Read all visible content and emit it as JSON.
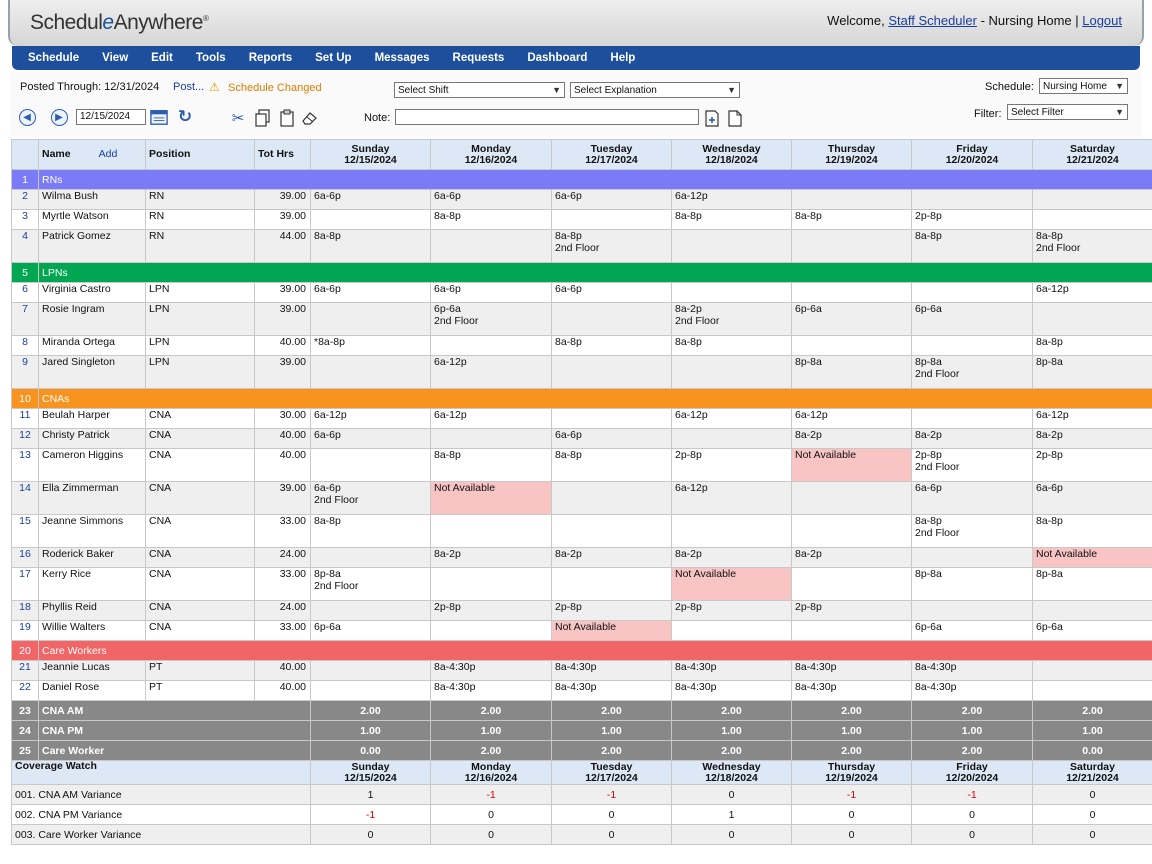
{
  "header": {
    "logo_text_a": "Schedul",
    "logo_text_e": "e",
    "logo_text_b": "Anywhere",
    "logo_reg": "®",
    "welcome_prefix": "Welcome, ",
    "user_link": "Staff Scheduler",
    "org_text": " - Nursing Home | ",
    "logout": "Logout"
  },
  "menu": [
    "Schedule",
    "View",
    "Edit",
    "Tools",
    "Reports",
    "Set Up",
    "Messages",
    "Requests",
    "Dashboard",
    "Help"
  ],
  "toolbar": {
    "posted_label": "Posted Through: 12/31/2024",
    "post_link": "Post...",
    "changed_text": "Schedule Changed",
    "select_shift": "Select Shift",
    "select_explanation": "Select Explanation",
    "schedule_label": "Schedule:",
    "schedule_value": "Nursing Home",
    "filter_label": "Filter:",
    "filter_value": "Select Filter",
    "date_value": "12/15/2024",
    "note_label": "Note:",
    "note_value": ""
  },
  "columns": {
    "name": "Name",
    "add": "Add",
    "position": "Position",
    "tot_hrs": "Tot Hrs",
    "days": [
      {
        "day": "Sunday",
        "date": "12/15/2024"
      },
      {
        "day": "Monday",
        "date": "12/16/2024"
      },
      {
        "day": "Tuesday",
        "date": "12/17/2024"
      },
      {
        "day": "Wednesday",
        "date": "12/18/2024"
      },
      {
        "day": "Thursday",
        "date": "12/19/2024"
      },
      {
        "day": "Friday",
        "date": "12/20/2024"
      },
      {
        "day": "Saturday",
        "date": "12/21/2024"
      }
    ]
  },
  "rows": [
    {
      "type": "group",
      "n": "1",
      "label": "RNs",
      "color": "#7b7bf7"
    },
    {
      "type": "staff",
      "n": "2",
      "name": "Wilma Bush",
      "pos": "RN",
      "hrs": "39.00",
      "cells": [
        "6a-6p",
        "6a-6p",
        "6a-6p",
        "6a-12p",
        "",
        "",
        ""
      ]
    },
    {
      "type": "staff",
      "n": "3",
      "name": "Myrtle Watson",
      "pos": "RN",
      "hrs": "39.00",
      "cells": [
        "",
        "8a-8p",
        "",
        "8a-8p",
        "8a-8p",
        "2p-8p",
        ""
      ]
    },
    {
      "type": "staff",
      "n": "4",
      "name": "Patrick Gomez",
      "pos": "RN",
      "hrs": "44.00",
      "tall": true,
      "cells": [
        "8a-8p",
        "",
        "8a-8p|2nd Floor",
        "",
        "",
        "8a-8p",
        "8a-8p|2nd Floor"
      ]
    },
    {
      "type": "group",
      "n": "5",
      "label": "LPNs",
      "color": "#00a651"
    },
    {
      "type": "staff",
      "n": "6",
      "name": "Virginia Castro",
      "pos": "LPN",
      "hrs": "39.00",
      "cells": [
        "6a-6p",
        "6a-6p",
        "6a-6p",
        "",
        "",
        "",
        "6a-12p"
      ]
    },
    {
      "type": "staff",
      "n": "7",
      "name": "Rosie Ingram",
      "pos": "LPN",
      "hrs": "39.00",
      "tall": true,
      "cells": [
        "",
        "6p-6a|2nd Floor",
        "",
        "8a-2p|2nd Floor",
        "6p-6a",
        "6p-6a",
        ""
      ]
    },
    {
      "type": "staff",
      "n": "8",
      "name": "Miranda Ortega",
      "pos": "LPN",
      "hrs": "40.00",
      "cells": [
        "*8a-8p",
        "",
        "8a-8p",
        "8a-8p",
        "",
        "",
        "8a-8p"
      ]
    },
    {
      "type": "staff",
      "n": "9",
      "name": "Jared Singleton",
      "pos": "LPN",
      "hrs": "39.00",
      "tall": true,
      "cells": [
        "",
        "6a-12p",
        "",
        "",
        "8p-8a",
        "8p-8a|2nd Floor",
        "8p-8a"
      ]
    },
    {
      "type": "group",
      "n": "10",
      "label": "CNAs",
      "color": "#f7931e"
    },
    {
      "type": "staff",
      "n": "11",
      "name": "Beulah Harper",
      "pos": "CNA",
      "hrs": "30.00",
      "cells": [
        "6a-12p",
        "6a-12p",
        "",
        "6a-12p",
        "6a-12p",
        "",
        "6a-12p"
      ]
    },
    {
      "type": "staff",
      "n": "12",
      "name": "Christy Patrick",
      "pos": "CNA",
      "hrs": "40.00",
      "cells": [
        "6a-6p",
        "",
        "6a-6p",
        "",
        "8a-2p",
        "8a-2p",
        "8a-2p"
      ]
    },
    {
      "type": "staff",
      "n": "13",
      "name": "Cameron Higgins",
      "pos": "CNA",
      "hrs": "40.00",
      "tall": true,
      "cells": [
        "",
        "8a-8p",
        "8a-8p",
        "2p-8p",
        "!Not Available",
        "2p-8p|2nd Floor",
        "2p-8p"
      ]
    },
    {
      "type": "staff",
      "n": "14",
      "name": "Ella Zimmerman",
      "pos": "CNA",
      "hrs": "39.00",
      "tall": true,
      "cells": [
        "6a-6p|2nd Floor",
        "!Not Available",
        "",
        "6a-12p",
        "",
        "6a-6p",
        "6a-6p"
      ]
    },
    {
      "type": "staff",
      "n": "15",
      "name": "Jeanne Simmons",
      "pos": "CNA",
      "hrs": "33.00",
      "tall": true,
      "cells": [
        "8a-8p",
        "",
        "",
        "",
        "",
        "8a-8p|2nd Floor",
        "8a-8p"
      ]
    },
    {
      "type": "staff",
      "n": "16",
      "name": "Roderick Baker",
      "pos": "CNA",
      "hrs": "24.00",
      "cells": [
        "",
        "8a-2p",
        "8a-2p",
        "8a-2p",
        "8a-2p",
        "",
        "!Not Available"
      ]
    },
    {
      "type": "staff",
      "n": "17",
      "name": "Kerry Rice",
      "pos": "CNA",
      "hrs": "33.00",
      "tall": true,
      "cells": [
        "8p-8a|2nd Floor",
        "",
        "",
        "!Not Available",
        "",
        "8p-8a",
        "8p-8a"
      ]
    },
    {
      "type": "staff",
      "n": "18",
      "name": "Phyllis Reid",
      "pos": "CNA",
      "hrs": "24.00",
      "cells": [
        "",
        "2p-8p",
        "2p-8p",
        "2p-8p",
        "2p-8p",
        "",
        ""
      ]
    },
    {
      "type": "staff",
      "n": "19",
      "name": "Willie Walters",
      "pos": "CNA",
      "hrs": "33.00",
      "cells": [
        "6p-6a",
        "",
        "!Not Available",
        "",
        "",
        "6p-6a",
        "6p-6a"
      ]
    },
    {
      "type": "group",
      "n": "20",
      "label": "Care Workers",
      "color": "#f26566"
    },
    {
      "type": "staff",
      "n": "21",
      "name": "Jeannie Lucas",
      "pos": "PT",
      "hrs": "40.00",
      "cells": [
        "",
        "8a-4:30p",
        "8a-4:30p",
        "8a-4:30p",
        "8a-4:30p",
        "8a-4:30p",
        ""
      ]
    },
    {
      "type": "staff",
      "n": "22",
      "name": "Daniel Rose",
      "pos": "PT",
      "hrs": "40.00",
      "cells": [
        "",
        "8a-4:30p",
        "8a-4:30p",
        "8a-4:30p",
        "8a-4:30p",
        "8a-4:30p",
        ""
      ]
    },
    {
      "type": "summary",
      "n": "23",
      "label": "CNA AM",
      "cells": [
        "2.00",
        "2.00",
        "2.00",
        "2.00",
        "2.00",
        "2.00",
        "2.00"
      ]
    },
    {
      "type": "summary",
      "n": "24",
      "label": "CNA PM",
      "cells": [
        "1.00",
        "1.00",
        "1.00",
        "1.00",
        "1.00",
        "1.00",
        "1.00"
      ]
    },
    {
      "type": "summary",
      "n": "25",
      "label": "Care Worker",
      "cells": [
        "0.00",
        "2.00",
        "2.00",
        "2.00",
        "2.00",
        "2.00",
        "0.00"
      ]
    }
  ],
  "coverage": {
    "title": "Coverage Watch",
    "rows": [
      {
        "label": "001. CNA AM Variance",
        "cells": [
          "1",
          "-1",
          "-1",
          "0",
          "-1",
          "-1",
          "0"
        ]
      },
      {
        "label": "002. CNA PM Variance",
        "cells": [
          "-1",
          "0",
          "0",
          "1",
          "0",
          "0",
          "0"
        ]
      },
      {
        "label": "003. Care Worker Variance",
        "cells": [
          "0",
          "0",
          "0",
          "0",
          "0",
          "0",
          "0"
        ]
      }
    ]
  }
}
